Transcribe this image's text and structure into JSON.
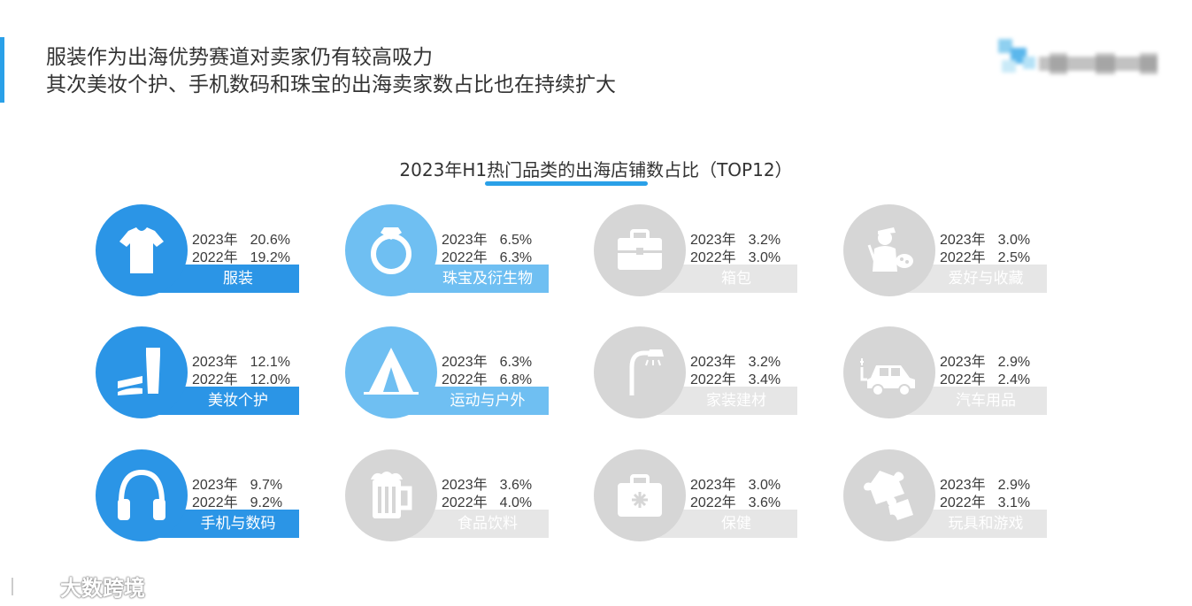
{
  "headline": {
    "line1": "服装作为出海优势赛道对卖家仍有较高吸力",
    "line2": "其次美妆个护、手机数码和珠宝的出海卖家数占比也在持续扩大"
  },
  "colors": {
    "accent": "#2aa0e8",
    "highlight_strong": "#2b95e6",
    "highlight_light": "#6fbff2",
    "muted": "#d6d6d6",
    "muted_band": "#e6e6e6"
  },
  "watermark": {
    "text": "大数跨境"
  },
  "chart_data": {
    "type": "table",
    "title": "2023年H1热门品类的出海店铺数占比（TOP12）",
    "years": [
      "2023年",
      "2022年"
    ],
    "categories": [
      {
        "name": "服装",
        "icon": "tshirt-icon",
        "style": "strong",
        "v2023": "20.6%",
        "v2022": "19.2%"
      },
      {
        "name": "珠宝及衍生物",
        "icon": "ring-icon",
        "style": "light",
        "v2023": "6.5%",
        "v2022": "6.3%"
      },
      {
        "name": "箱包",
        "icon": "briefcase-icon",
        "style": "muted",
        "v2023": "3.2%",
        "v2022": "3.0%"
      },
      {
        "name": "爱好与收藏",
        "icon": "painter-icon",
        "style": "muted",
        "v2023": "3.0%",
        "v2022": "2.5%"
      },
      {
        "name": "美妆个护",
        "icon": "cosmetics-icon",
        "style": "strong",
        "v2023": "12.1%",
        "v2022": "12.0%"
      },
      {
        "name": "运动与户外",
        "icon": "tent-icon",
        "style": "light",
        "v2023": "6.3%",
        "v2022": "6.8%"
      },
      {
        "name": "家装建材",
        "icon": "lamp-icon",
        "style": "muted",
        "v2023": "3.2%",
        "v2022": "3.4%"
      },
      {
        "name": "汽车用品",
        "icon": "car-icon",
        "style": "muted",
        "v2023": "2.9%",
        "v2022": "2.4%"
      },
      {
        "name": "手机与数码",
        "icon": "headphones-icon",
        "style": "strong",
        "v2023": "9.7%",
        "v2022": "9.2%"
      },
      {
        "name": "食品饮料",
        "icon": "beer-mug-icon",
        "style": "muted",
        "v2023": "3.6%",
        "v2022": "4.0%"
      },
      {
        "name": "保健",
        "icon": "medkit-icon",
        "style": "muted",
        "v2023": "3.0%",
        "v2022": "3.6%"
      },
      {
        "name": "玩具和游戏",
        "icon": "puzzle-icon",
        "style": "muted",
        "v2023": "2.9%",
        "v2022": "3.1%"
      }
    ]
  }
}
